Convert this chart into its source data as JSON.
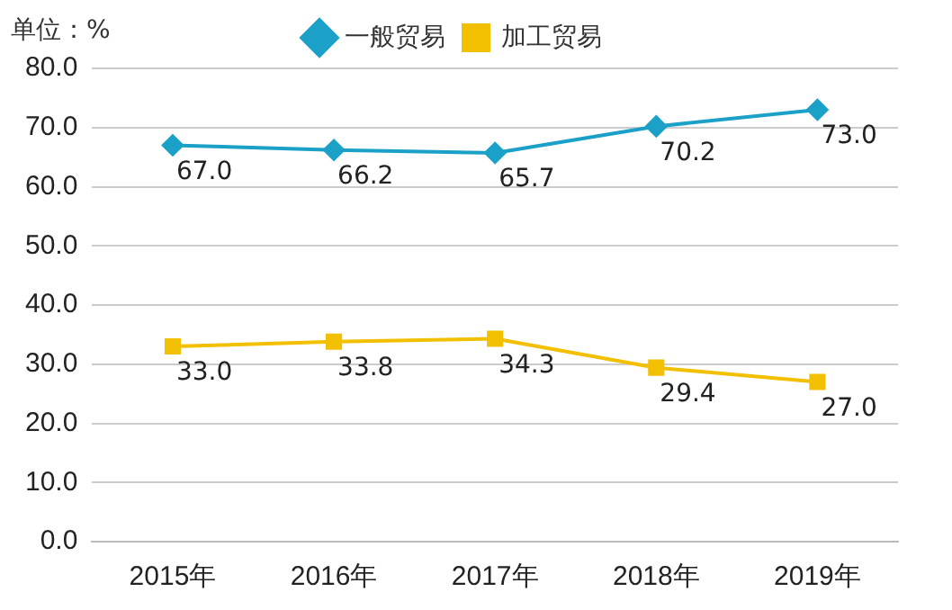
{
  "chart_data": {
    "type": "line",
    "ylabel": "单位：%",
    "categories": [
      "2015年",
      "2016年",
      "2017年",
      "2018年",
      "2019年"
    ],
    "series": [
      {
        "name": "一般贸易",
        "color": "#1ba1c8",
        "marker": "diamond",
        "values": [
          67.0,
          66.2,
          65.7,
          70.2,
          73.0
        ],
        "value_labels": [
          "67.0",
          "66.2",
          "65.7",
          "70.2",
          "73.0"
        ]
      },
      {
        "name": "加工贸易",
        "color": "#f2c000",
        "marker": "square",
        "values": [
          33.0,
          33.8,
          34.3,
          29.4,
          27.0
        ],
        "value_labels": [
          "33.0",
          "33.8",
          "34.3",
          "29.4",
          "27.0"
        ]
      }
    ],
    "ylim": [
      0,
      80
    ],
    "yticks": [
      {
        "value": 0,
        "label": "0.0"
      },
      {
        "value": 10,
        "label": "10.0"
      },
      {
        "value": 20,
        "label": "20.0"
      },
      {
        "value": 30,
        "label": "30.0"
      },
      {
        "value": 40,
        "label": "40.0"
      },
      {
        "value": 50,
        "label": "50.0"
      },
      {
        "value": 60,
        "label": "60.0"
      },
      {
        "value": 70,
        "label": "70.0"
      },
      {
        "value": 80,
        "label": "80.0"
      }
    ],
    "grid": "y",
    "legend": "top",
    "line_style": "solid"
  }
}
